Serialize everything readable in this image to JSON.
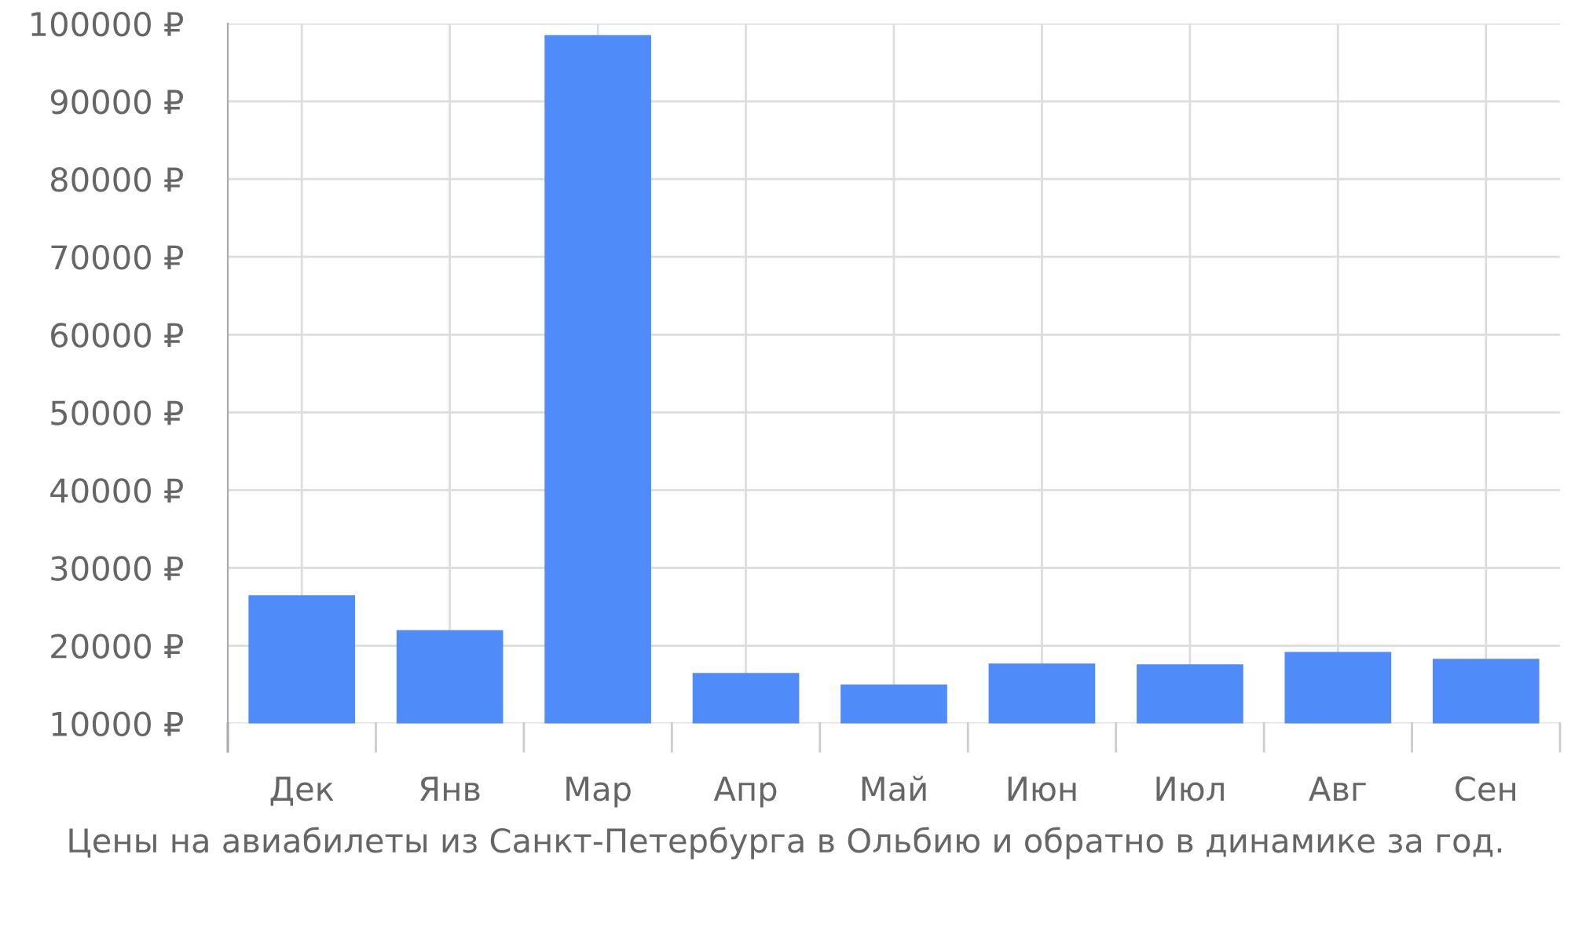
{
  "chart_data": {
    "type": "bar",
    "categories": [
      "Дек",
      "Янв",
      "Мар",
      "Апр",
      "Май",
      "Июн",
      "Июл",
      "Авг",
      "Сен"
    ],
    "values": [
      26500,
      22000,
      98500,
      16500,
      15000,
      17700,
      17600,
      19200,
      18300
    ],
    "color": "#4f8bf9",
    "ylim": [
      10000,
      100000
    ],
    "yticks": [
      {
        "value": 10000,
        "label": "10000 ₽"
      },
      {
        "value": 20000,
        "label": "20000 ₽"
      },
      {
        "value": 30000,
        "label": "30000 ₽"
      },
      {
        "value": 40000,
        "label": "40000 ₽"
      },
      {
        "value": 50000,
        "label": "50000 ₽"
      },
      {
        "value": 60000,
        "label": "60000 ₽"
      },
      {
        "value": 70000,
        "label": "70000 ₽"
      },
      {
        "value": 80000,
        "label": "80000 ₽"
      },
      {
        "value": 90000,
        "label": "90000 ₽"
      },
      {
        "value": 100000,
        "label": "100000 ₽"
      }
    ],
    "grid": true,
    "annotations": [
      "Цены на авиабилеты из Санкт-Петербурга в Ольбию и обратно в динамике за год."
    ]
  }
}
